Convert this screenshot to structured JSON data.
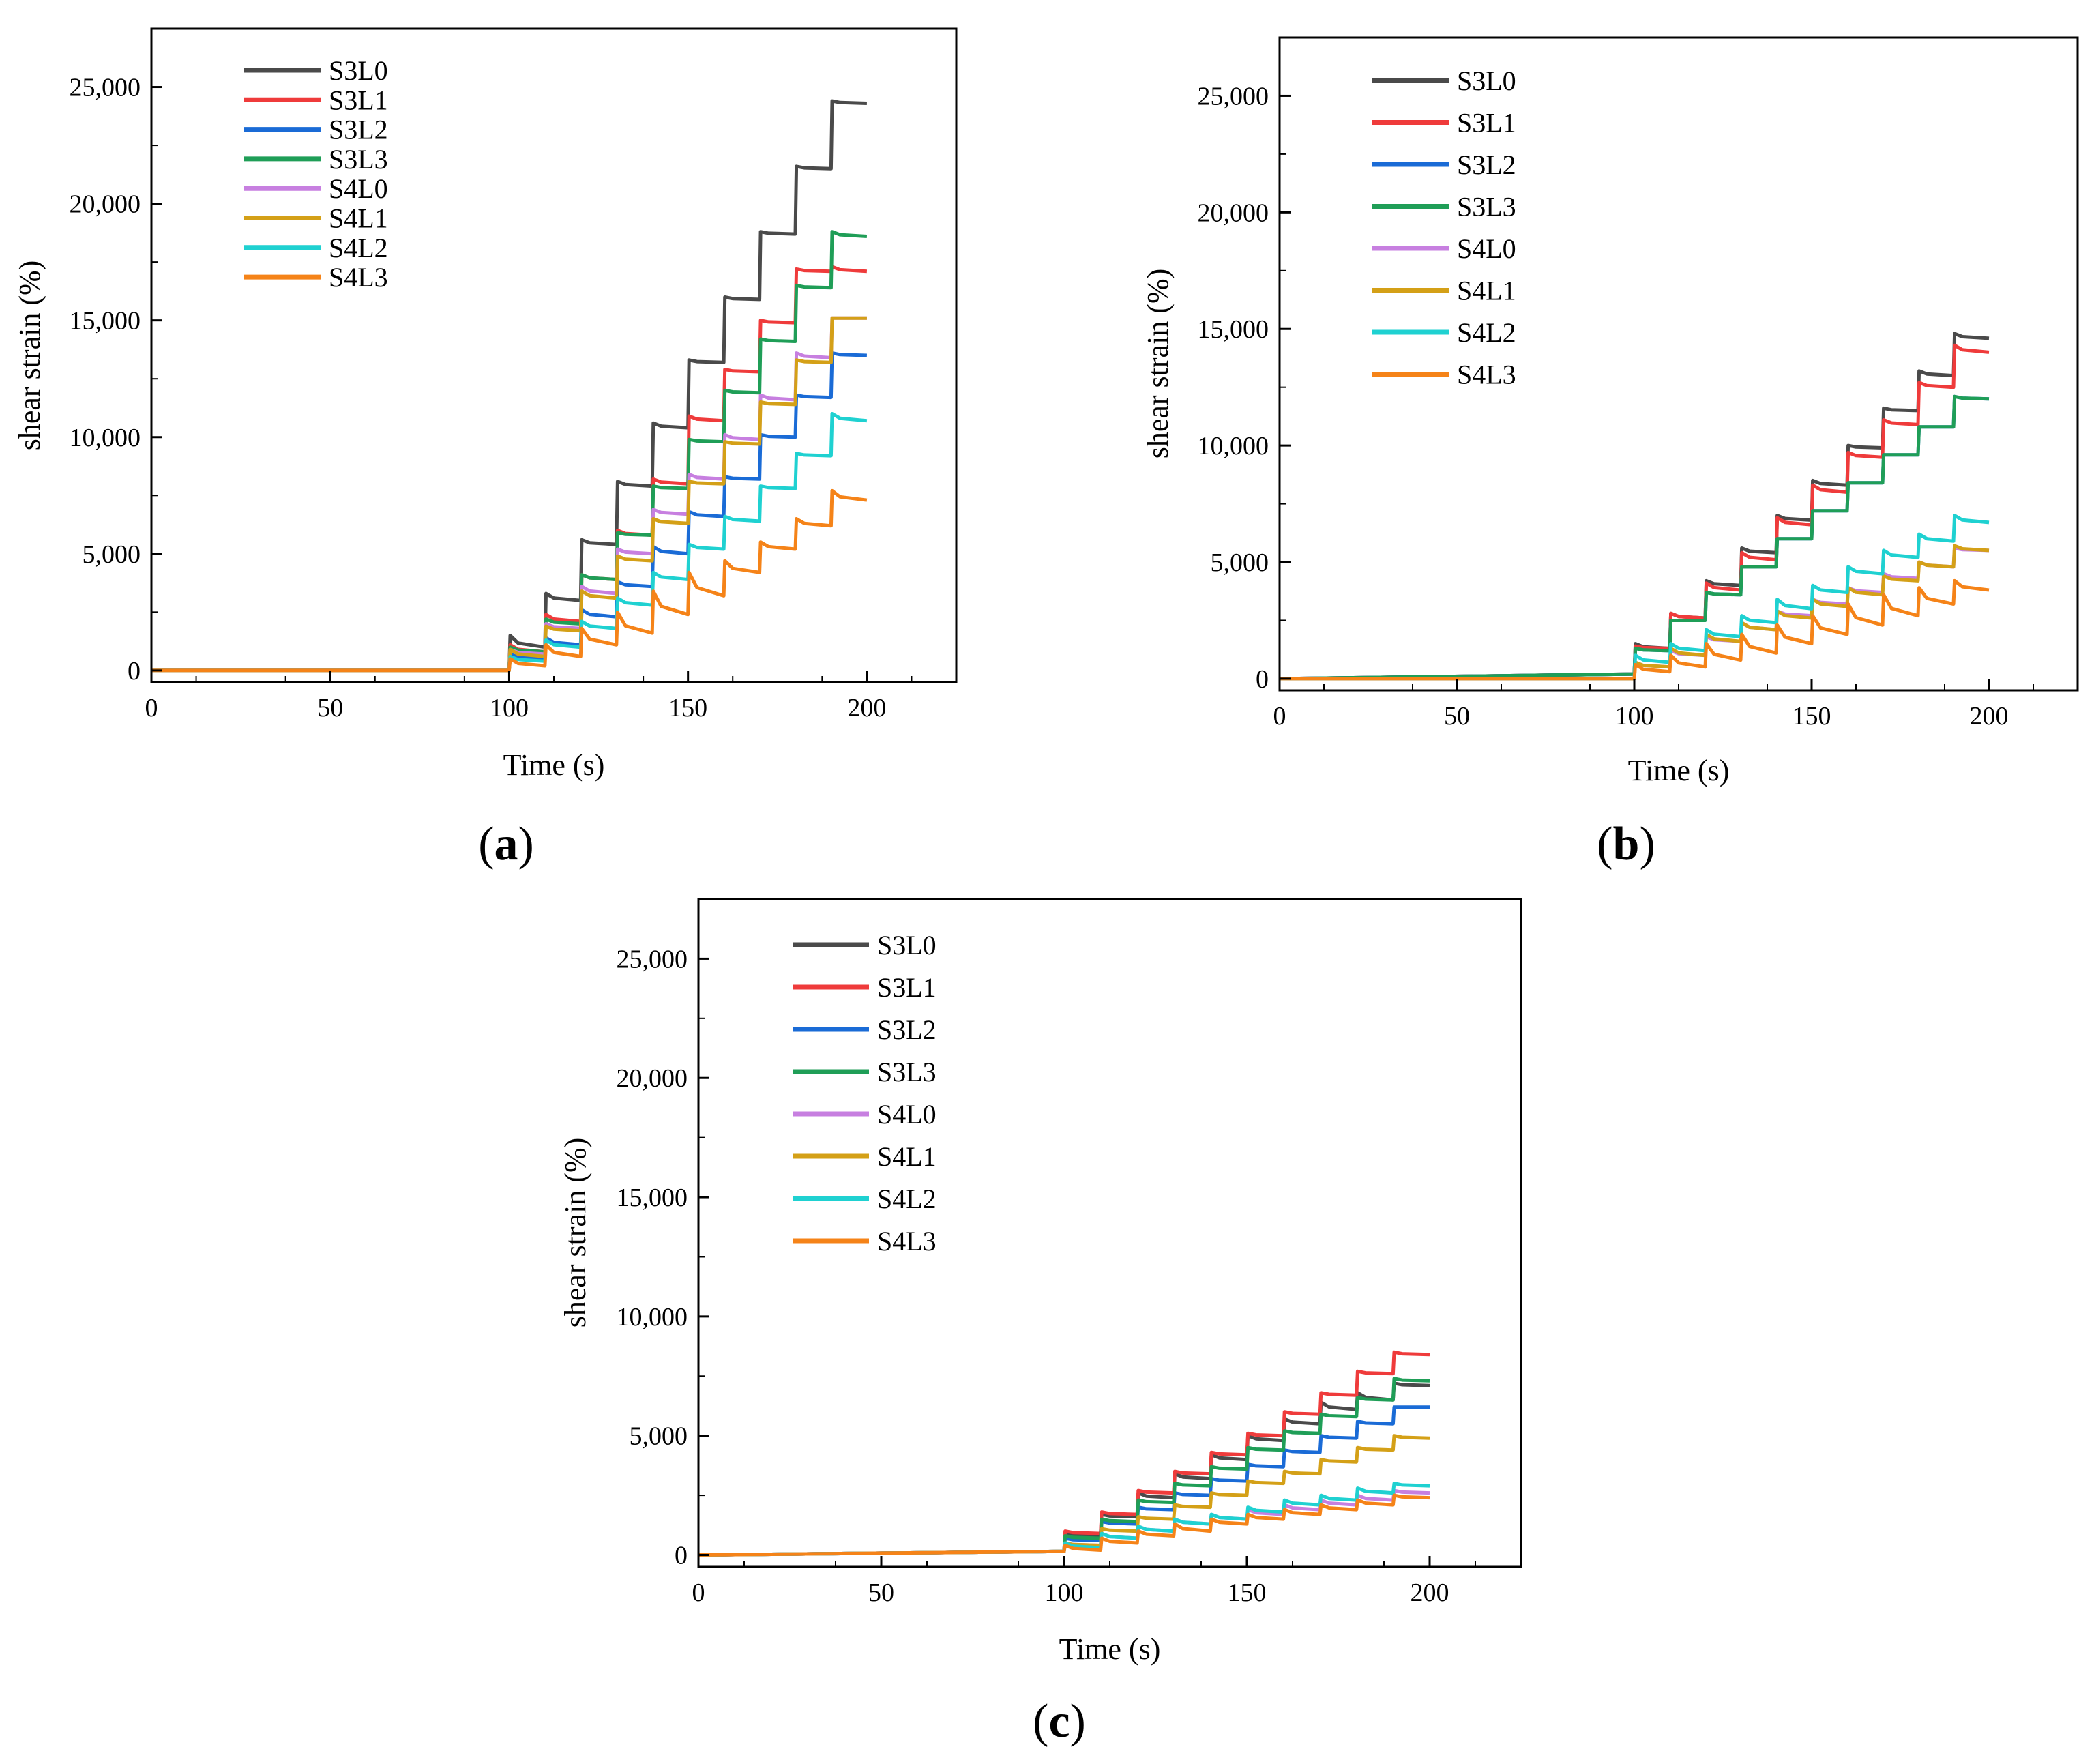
{
  "series_meta": [
    {
      "name": "S3L0",
      "color": "#4a4a4a"
    },
    {
      "name": "S3L1",
      "color": "#ef3b3b"
    },
    {
      "name": "S3L2",
      "color": "#1a6bd6"
    },
    {
      "name": "S3L3",
      "color": "#1f9e57"
    },
    {
      "name": "S4L0",
      "color": "#c77fe0"
    },
    {
      "name": "S4L1",
      "color": "#d4a017"
    },
    {
      "name": "S4L2",
      "color": "#1fd1d1"
    },
    {
      "name": "S4L3",
      "color": "#f58318"
    }
  ],
  "panels": [
    {
      "id": "a",
      "label_open": "(",
      "label_letter": "a",
      "label_close": ")"
    },
    {
      "id": "b",
      "label_open": "(",
      "label_letter": "b",
      "label_close": ")"
    },
    {
      "id": "c",
      "label_open": "(",
      "label_letter": "c",
      "label_close": ")"
    }
  ],
  "chart_data": [
    {
      "type": "line",
      "panel": "a",
      "xlabel": "Time (s)",
      "ylabel": "shear strain (%)",
      "xlim": [
        0,
        225
      ],
      "ylim": [
        -500,
        27500
      ],
      "xticks": [
        0,
        50,
        100,
        150,
        200
      ],
      "xtick_labels": [
        "0",
        "50",
        "100",
        "150",
        "200"
      ],
      "yticks": [
        0,
        5000,
        10000,
        15000,
        20000,
        25000
      ],
      "ytick_labels": [
        "0",
        "5,000",
        "10,000",
        "15,000",
        "20,000",
        "25,000"
      ],
      "grid": false,
      "legend": "top-left",
      "step_times": [
        100,
        110,
        120,
        130,
        140,
        150,
        160,
        170,
        180,
        190
      ],
      "baseline": [
        0,
        0,
        0,
        0,
        0,
        0,
        0,
        0
      ],
      "series": [
        {
          "name": "S3L0",
          "peaks": [
            1500,
            3300,
            5600,
            8100,
            10600,
            13300,
            16000,
            18800,
            21600,
            24400
          ],
          "troughs": [
            1000,
            3000,
            5400,
            7900,
            10400,
            13200,
            15900,
            18700,
            21500,
            24300
          ]
        },
        {
          "name": "S3L1",
          "peaks": [
            1100,
            2400,
            4100,
            6000,
            8200,
            10900,
            12900,
            15000,
            17200,
            17300
          ],
          "troughs": [
            800,
            2100,
            3900,
            5800,
            8000,
            10700,
            12800,
            14900,
            17100,
            17100
          ]
        },
        {
          "name": "S3L2",
          "peaks": [
            700,
            1400,
            2600,
            3800,
            5300,
            6800,
            8300,
            10100,
            11800,
            13600
          ],
          "troughs": [
            500,
            1100,
            2300,
            3600,
            5000,
            6600,
            8200,
            10000,
            11700,
            13500
          ]
        },
        {
          "name": "S3L3",
          "peaks": [
            1000,
            2200,
            4100,
            5900,
            7900,
            9900,
            12000,
            14200,
            16500,
            18800
          ],
          "troughs": [
            800,
            2000,
            3900,
            5800,
            7800,
            9800,
            11900,
            14100,
            16400,
            18600
          ]
        },
        {
          "name": "S4L0",
          "peaks": [
            900,
            2000,
            3600,
            5200,
            6900,
            8400,
            10100,
            11800,
            13600,
            15100
          ],
          "troughs": [
            700,
            1800,
            3300,
            5000,
            6700,
            8200,
            9900,
            11600,
            13400,
            15100
          ]
        },
        {
          "name": "S4L1",
          "peaks": [
            900,
            1900,
            3400,
            4900,
            6500,
            8100,
            9800,
            11500,
            13300,
            15100
          ],
          "troughs": [
            600,
            1700,
            3100,
            4700,
            6300,
            8000,
            9700,
            11400,
            13200,
            15100
          ]
        },
        {
          "name": "S4L2",
          "peaks": [
            600,
            1300,
            2100,
            3100,
            4200,
            5400,
            6600,
            7900,
            9300,
            11000
          ],
          "troughs": [
            400,
            1000,
            1800,
            2800,
            3900,
            5200,
            6400,
            7800,
            9200,
            10700
          ]
        },
        {
          "name": "S4L3",
          "peaks": [
            500,
            1100,
            1800,
            2500,
            3400,
            4200,
            4700,
            5500,
            6500,
            7700
          ],
          "troughs": [
            200,
            600,
            1100,
            1600,
            2400,
            3200,
            4200,
            5200,
            6200,
            7300
          ]
        }
      ]
    },
    {
      "type": "line",
      "panel": "b",
      "xlabel": "Time (s)",
      "ylabel": "shear strain (%)",
      "xlim": [
        0,
        225
      ],
      "ylim": [
        -500,
        27500
      ],
      "xticks": [
        0,
        50,
        100,
        150,
        200
      ],
      "xtick_labels": [
        "0",
        "50",
        "100",
        "150",
        "200"
      ],
      "yticks": [
        0,
        5000,
        10000,
        15000,
        20000,
        25000
      ],
      "ytick_labels": [
        "0",
        "5,000",
        "10,000",
        "15,000",
        "20,000",
        "25,000"
      ],
      "grid": false,
      "legend": "top-left",
      "step_times": [
        100,
        110,
        120,
        130,
        140,
        150,
        160,
        170,
        180,
        190
      ],
      "baseline": [
        200,
        200,
        200,
        200,
        0,
        0,
        0,
        0
      ],
      "series": [
        {
          "name": "S3L0",
          "peaks": [
            1500,
            2800,
            4200,
            5600,
            7000,
            8500,
            10000,
            11600,
            13200,
            14800
          ],
          "troughs": [
            1300,
            2600,
            4000,
            5400,
            6800,
            8300,
            9900,
            11500,
            13000,
            14600
          ]
        },
        {
          "name": "S3L1",
          "peaks": [
            1400,
            2800,
            4100,
            5400,
            6900,
            8300,
            9700,
            11100,
            12700,
            14300
          ],
          "troughs": [
            1300,
            2600,
            3800,
            5100,
            6600,
            8000,
            9500,
            10900,
            12500,
            14000
          ]
        },
        {
          "name": "S3L2",
          "peaks": [
            1300,
            2500,
            3700,
            4800,
            6000,
            7200,
            8400,
            9600,
            10800,
            12100
          ],
          "troughs": [
            1200,
            2500,
            3600,
            4800,
            6000,
            7200,
            8400,
            9600,
            10800,
            12000
          ]
        },
        {
          "name": "S3L3",
          "peaks": [
            1300,
            2500,
            3700,
            4800,
            6000,
            7200,
            8400,
            9600,
            10800,
            12100
          ],
          "troughs": [
            1200,
            2500,
            3600,
            4800,
            6000,
            7200,
            8400,
            9600,
            10800,
            12000
          ]
        },
        {
          "name": "S4L0",
          "peaks": [
            700,
            1200,
            1800,
            2400,
            2900,
            3400,
            3900,
            4500,
            5000,
            5600
          ],
          "troughs": [
            500,
            1000,
            1600,
            2100,
            2700,
            3200,
            3700,
            4300,
            4800,
            5500
          ]
        },
        {
          "name": "S4L1",
          "peaks": [
            700,
            1300,
            1900,
            2400,
            2900,
            3400,
            3900,
            4400,
            5000,
            5700
          ],
          "troughs": [
            500,
            1000,
            1600,
            2100,
            2600,
            3100,
            3600,
            4200,
            4800,
            5500
          ]
        },
        {
          "name": "S4L2",
          "peaks": [
            1000,
            1500,
            2100,
            2700,
            3400,
            4000,
            4800,
            5500,
            6200,
            7000
          ],
          "troughs": [
            700,
            1200,
            1800,
            2400,
            3000,
            3700,
            4500,
            5200,
            5900,
            6700
          ]
        },
        {
          "name": "S4L3",
          "peaks": [
            600,
            1000,
            1500,
            1900,
            2300,
            2700,
            3200,
            3600,
            3900,
            4200
          ],
          "troughs": [
            300,
            500,
            800,
            1100,
            1500,
            1900,
            2300,
            2700,
            3200,
            3800
          ]
        }
      ]
    },
    {
      "type": "line",
      "panel": "c",
      "xlabel": "Time (s)",
      "ylabel": "shear strain (%)",
      "xlim": [
        0,
        225
      ],
      "ylim": [
        -500,
        27500
      ],
      "xticks": [
        0,
        50,
        100,
        150,
        200
      ],
      "xtick_labels": [
        "0",
        "50",
        "100",
        "150",
        "200"
      ],
      "yticks": [
        0,
        5000,
        10000,
        15000,
        20000,
        25000
      ],
      "ytick_labels": [
        "0",
        "5,000",
        "10,000",
        "15,000",
        "20,000",
        "25,000"
      ],
      "grid": false,
      "legend": "top-left",
      "step_times": [
        100,
        110,
        120,
        130,
        140,
        150,
        160,
        170,
        180,
        190
      ],
      "baseline": [
        150,
        150,
        150,
        150,
        150,
        150,
        150,
        150
      ],
      "series": [
        {
          "name": "S3L0",
          "peaks": [
            900,
            1700,
            2600,
            3400,
            4200,
            5000,
            5700,
            6400,
            6800,
            7200
          ],
          "troughs": [
            800,
            1600,
            2400,
            3200,
            4000,
            4800,
            5500,
            6100,
            6500,
            7100
          ]
        },
        {
          "name": "S3L1",
          "peaks": [
            1000,
            1800,
            2700,
            3500,
            4300,
            5100,
            6000,
            6800,
            7700,
            8500
          ],
          "troughs": [
            900,
            1700,
            2600,
            3400,
            4200,
            5000,
            5900,
            6700,
            7600,
            8400
          ]
        },
        {
          "name": "S3L2",
          "peaks": [
            700,
            1400,
            2000,
            2600,
            3200,
            3800,
            4400,
            5000,
            5600,
            6200
          ],
          "troughs": [
            600,
            1300,
            1900,
            2500,
            3100,
            3700,
            4300,
            4900,
            5500,
            6200
          ]
        },
        {
          "name": "S3L3",
          "peaks": [
            800,
            1500,
            2300,
            3000,
            3700,
            4500,
            5200,
            5900,
            6600,
            7400
          ],
          "troughs": [
            700,
            1400,
            2200,
            2900,
            3600,
            4400,
            5100,
            5800,
            6500,
            7300
          ]
        },
        {
          "name": "S4L0",
          "peaks": [
            500,
            900,
            1200,
            1500,
            1700,
            1900,
            2100,
            2300,
            2500,
            2700
          ],
          "troughs": [
            400,
            700,
            1000,
            1300,
            1500,
            1700,
            1900,
            2100,
            2300,
            2600
          ]
        },
        {
          "name": "S4L1",
          "peaks": [
            500,
            1100,
            1600,
            2100,
            2600,
            3100,
            3500,
            4000,
            4500,
            5000
          ],
          "troughs": [
            400,
            1000,
            1500,
            2000,
            2500,
            3000,
            3400,
            3900,
            4400,
            4900
          ]
        },
        {
          "name": "S4L2",
          "peaks": [
            500,
            900,
            1200,
            1500,
            1700,
            2000,
            2300,
            2500,
            2800,
            3000
          ],
          "troughs": [
            300,
            700,
            1000,
            1300,
            1500,
            1800,
            2100,
            2300,
            2600,
            2900
          ]
        },
        {
          "name": "S4L3",
          "peaks": [
            400,
            700,
            1000,
            1300,
            1500,
            1700,
            1900,
            2100,
            2300,
            2500
          ],
          "troughs": [
            200,
            500,
            800,
            1000,
            1300,
            1500,
            1700,
            1900,
            2100,
            2400
          ]
        }
      ]
    }
  ]
}
